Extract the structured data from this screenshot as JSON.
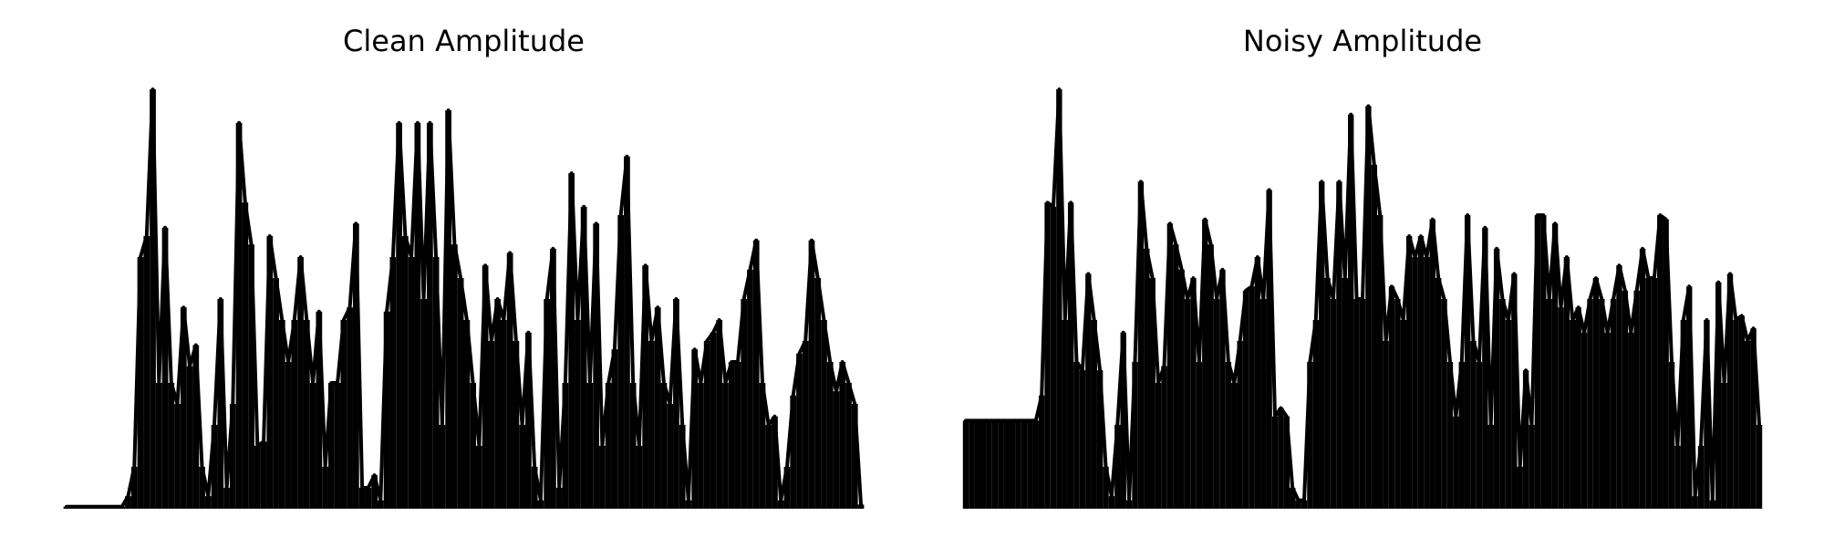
{
  "chart_data": [
    {
      "type": "area",
      "title": "Clean Amplitude",
      "color": "#000000",
      "axes": false,
      "ylim": [
        0,
        1
      ],
      "values": [
        0.005,
        0.005,
        0.005,
        0.005,
        0.005,
        0.005,
        0.005,
        0.005,
        0.005,
        0.005,
        0.03,
        0.1,
        0.6,
        0.65,
        1.0,
        0.3,
        0.67,
        0.3,
        0.25,
        0.48,
        0.34,
        0.39,
        0.1,
        0.03,
        0.2,
        0.5,
        0.05,
        0.25,
        0.92,
        0.73,
        0.63,
        0.15,
        0.16,
        0.65,
        0.55,
        0.45,
        0.35,
        0.45,
        0.6,
        0.45,
        0.3,
        0.47,
        0.1,
        0.3,
        0.3,
        0.45,
        0.48,
        0.68,
        0.05,
        0.05,
        0.08,
        0.02,
        0.47,
        0.6,
        0.92,
        0.65,
        0.6,
        0.92,
        0.5,
        0.92,
        0.6,
        0.2,
        0.95,
        0.63,
        0.55,
        0.45,
        0.3,
        0.15,
        0.58,
        0.4,
        0.5,
        0.45,
        0.61,
        0.4,
        0.2,
        0.42,
        0.1,
        0.02,
        0.5,
        0.62,
        0.05,
        0.3,
        0.8,
        0.45,
        0.72,
        0.3,
        0.68,
        0.15,
        0.3,
        0.38,
        0.7,
        0.84,
        0.3,
        0.15,
        0.58,
        0.4,
        0.48,
        0.3,
        0.25,
        0.5,
        0.2,
        0.02,
        0.38,
        0.3,
        0.4,
        0.42,
        0.45,
        0.3,
        0.35,
        0.35,
        0.5,
        0.57,
        0.64,
        0.3,
        0.2,
        0.22,
        0.02,
        0.1,
        0.27,
        0.37,
        0.4,
        0.64,
        0.55,
        0.45,
        0.35,
        0.28,
        0.35,
        0.3,
        0.25,
        0.01
      ]
    },
    {
      "type": "area",
      "title": "Noisy Amplitude",
      "color": "#000000",
      "axes": false,
      "ylim": [
        0,
        1
      ],
      "values": [
        0.21,
        0.21,
        0.21,
        0.21,
        0.21,
        0.21,
        0.21,
        0.21,
        0.21,
        0.21,
        0.21,
        0.21,
        0.21,
        0.27,
        0.73,
        0.72,
        1.0,
        0.45,
        0.73,
        0.35,
        0.33,
        0.56,
        0.45,
        0.33,
        0.1,
        0.03,
        0.2,
        0.42,
        0.02,
        0.35,
        0.78,
        0.62,
        0.55,
        0.3,
        0.34,
        0.68,
        0.63,
        0.57,
        0.5,
        0.55,
        0.35,
        0.69,
        0.63,
        0.5,
        0.57,
        0.35,
        0.3,
        0.4,
        0.52,
        0.53,
        0.6,
        0.5,
        0.76,
        0.22,
        0.24,
        0.22,
        0.05,
        0.02,
        0.02,
        0.35,
        0.45,
        0.78,
        0.55,
        0.5,
        0.78,
        0.55,
        0.94,
        0.5,
        0.5,
        0.96,
        0.82,
        0.7,
        0.4,
        0.53,
        0.5,
        0.45,
        0.65,
        0.6,
        0.65,
        0.6,
        0.69,
        0.55,
        0.5,
        0.35,
        0.22,
        0.35,
        0.7,
        0.4,
        0.35,
        0.67,
        0.2,
        0.62,
        0.5,
        0.45,
        0.56,
        0.1,
        0.33,
        0.2,
        0.7,
        0.7,
        0.5,
        0.68,
        0.48,
        0.6,
        0.45,
        0.48,
        0.42,
        0.5,
        0.55,
        0.5,
        0.42,
        0.5,
        0.58,
        0.52,
        0.42,
        0.52,
        0.62,
        0.55,
        0.55,
        0.7,
        0.69,
        0.35,
        0.15,
        0.45,
        0.53,
        0.03,
        0.15,
        0.45,
        0.02,
        0.54,
        0.3,
        0.56,
        0.45,
        0.46,
        0.4,
        0.43,
        0.2
      ]
    }
  ]
}
